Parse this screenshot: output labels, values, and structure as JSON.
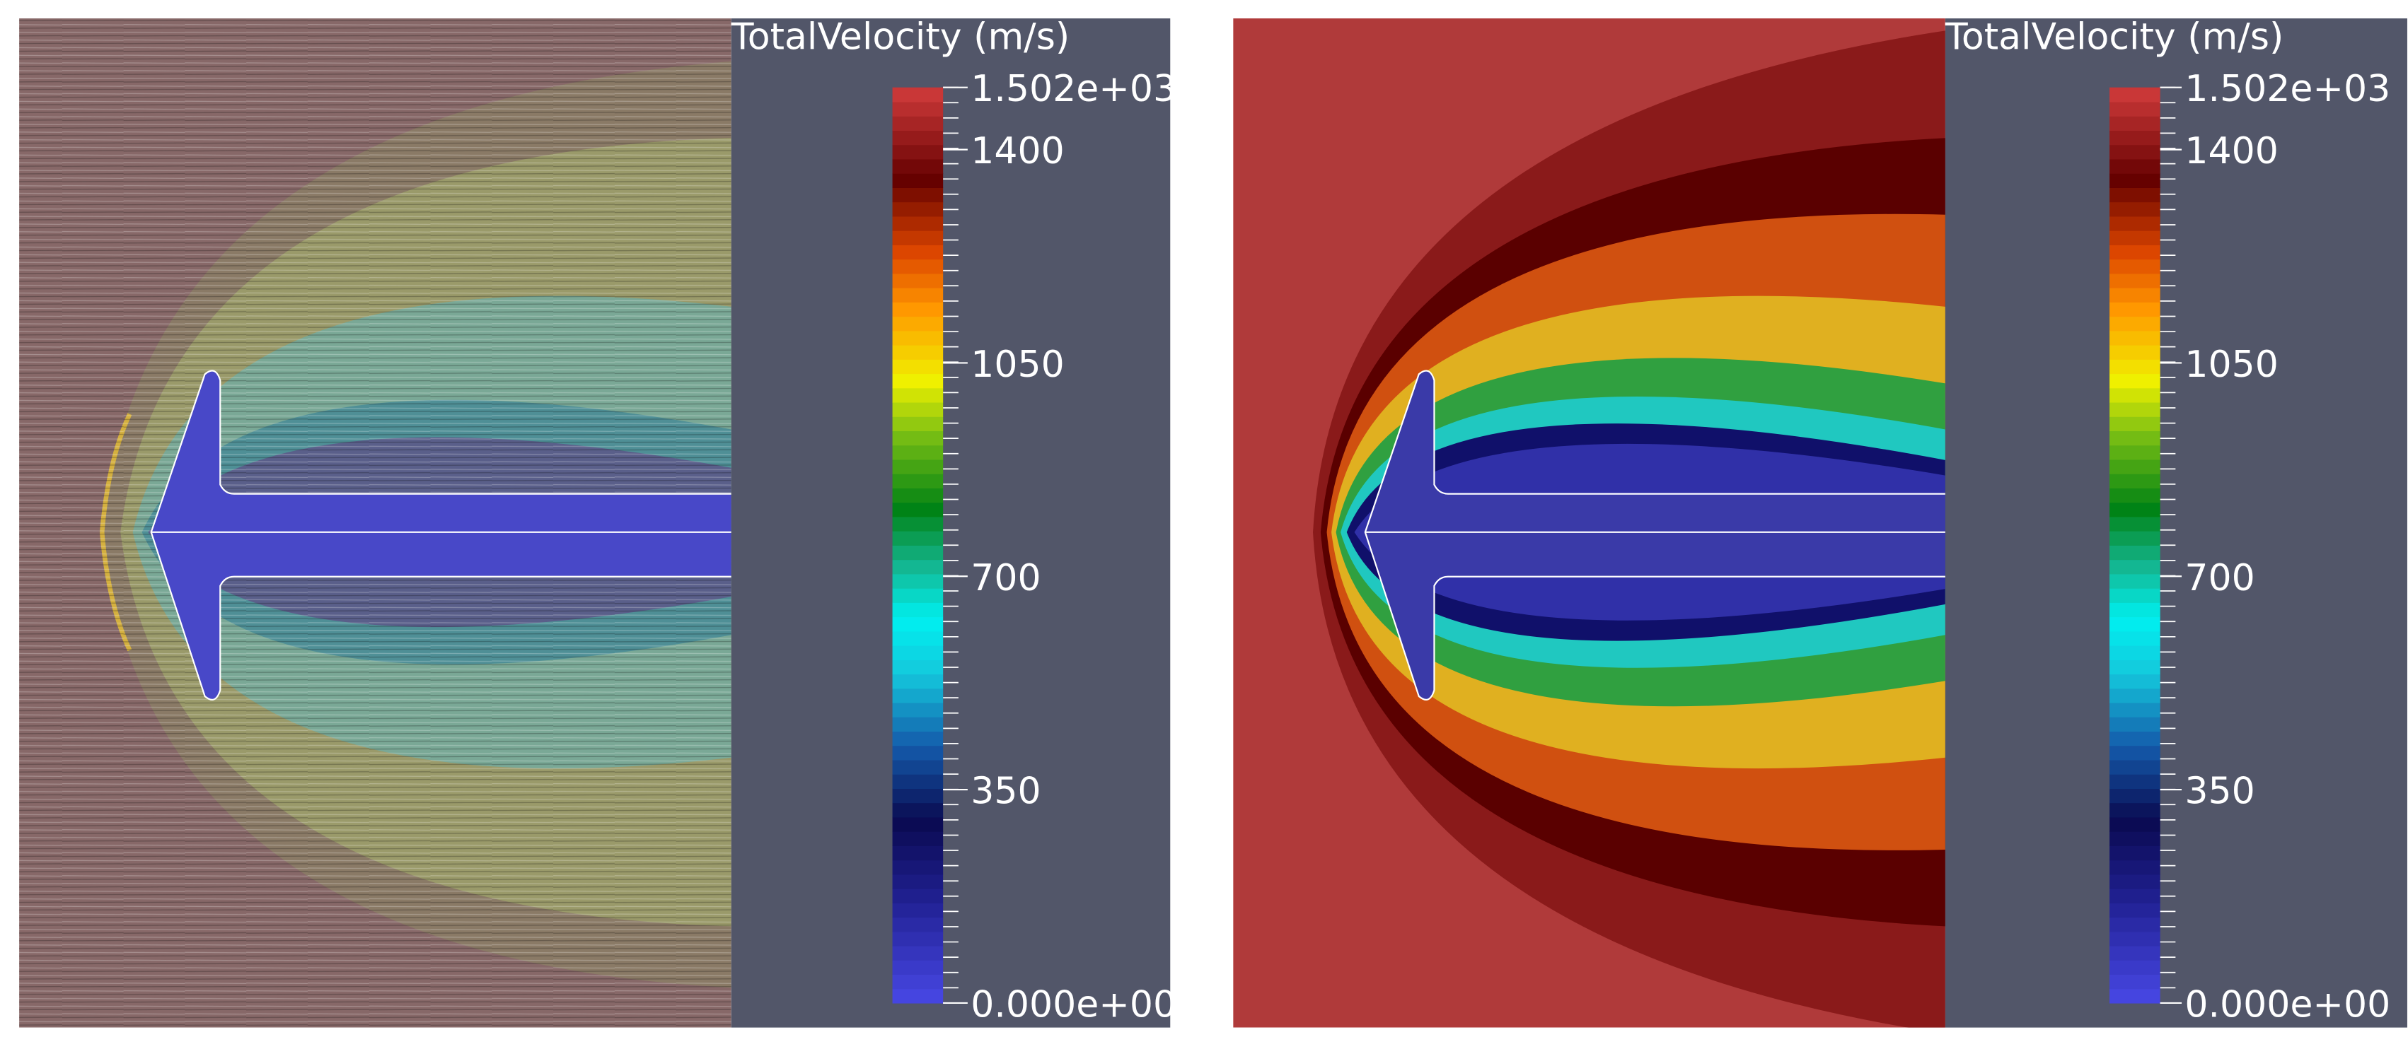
{
  "panels": [
    {
      "colorbar": {
        "title": "TotalVelocity (m/s)",
        "ticks": [
          {
            "value": 0,
            "label": "0.000e+00"
          },
          350,
          700,
          1050,
          1400,
          {
            "value": 1502,
            "label": "1.502e+03"
          }
        ]
      }
    },
    {
      "colorbar": {
        "title": "TotalVelocity (m/s)",
        "ticks": [
          {
            "value": 0,
            "label": "0.000e+00"
          },
          350,
          700,
          1050,
          1400,
          {
            "value": 1502,
            "label": "1.502e+03"
          }
        ]
      }
    }
  ]
}
